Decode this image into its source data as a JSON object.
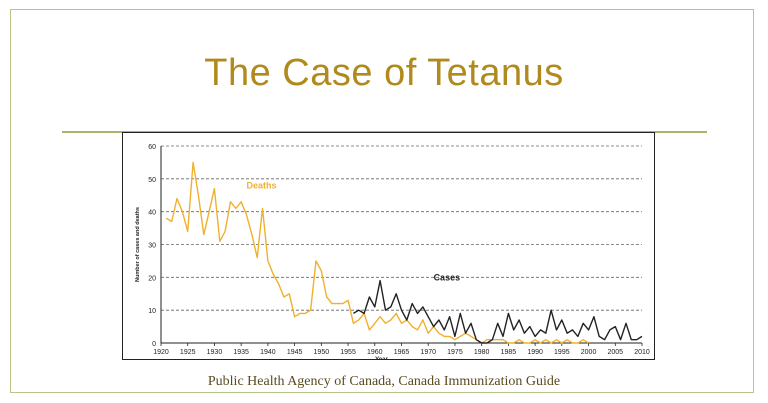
{
  "slide": {
    "title": "The Case of Tetanus",
    "source": "Public Health Agency of Canada, Canada Immunization Guide"
  },
  "colors": {
    "title": "#b08a1c",
    "rule": "#a8b66a",
    "deaths": "#f0b02e",
    "cases": "#222222",
    "grid": "#666666"
  },
  "chart_data": {
    "type": "line",
    "ylabel": "Number of cases and deaths",
    "xlabel": "Year",
    "xlim": [
      1920,
      2010
    ],
    "ylim": [
      0,
      60
    ],
    "x_ticks": [
      1920,
      1925,
      1930,
      1935,
      1940,
      1945,
      1950,
      1955,
      1960,
      1965,
      1970,
      1975,
      1980,
      1985,
      1990,
      1995,
      2000,
      2005,
      2010
    ],
    "y_ticks": [
      0,
      10,
      20,
      30,
      40,
      50,
      60
    ],
    "grid": "horizontal dashed",
    "series": [
      {
        "name": "Deaths",
        "color": "#f0b02e",
        "label_at": [
          1936,
          47
        ],
        "points": [
          [
            1921,
            38
          ],
          [
            1922,
            37
          ],
          [
            1923,
            44
          ],
          [
            1924,
            40
          ],
          [
            1925,
            34
          ],
          [
            1926,
            55
          ],
          [
            1927,
            45
          ],
          [
            1928,
            33
          ],
          [
            1929,
            40
          ],
          [
            1930,
            47
          ],
          [
            1931,
            31
          ],
          [
            1932,
            34
          ],
          [
            1933,
            43
          ],
          [
            1934,
            41
          ],
          [
            1935,
            43
          ],
          [
            1936,
            39
          ],
          [
            1937,
            33
          ],
          [
            1938,
            26
          ],
          [
            1939,
            41
          ],
          [
            1940,
            25
          ],
          [
            1941,
            21
          ],
          [
            1942,
            18
          ],
          [
            1943,
            14
          ],
          [
            1944,
            15
          ],
          [
            1945,
            8
          ],
          [
            1946,
            9
          ],
          [
            1947,
            9
          ],
          [
            1948,
            10
          ],
          [
            1949,
            25
          ],
          [
            1950,
            22
          ],
          [
            1951,
            14
          ],
          [
            1952,
            12
          ],
          [
            1953,
            12
          ],
          [
            1954,
            12
          ],
          [
            1955,
            13
          ],
          [
            1956,
            6
          ],
          [
            1957,
            7
          ],
          [
            1958,
            9
          ],
          [
            1959,
            4
          ],
          [
            1960,
            6
          ],
          [
            1961,
            8
          ],
          [
            1962,
            6
          ],
          [
            1963,
            7
          ],
          [
            1964,
            9
          ],
          [
            1965,
            6
          ],
          [
            1966,
            7
          ],
          [
            1967,
            5
          ],
          [
            1968,
            4
          ],
          [
            1969,
            7
          ],
          [
            1970,
            3
          ],
          [
            1971,
            5
          ],
          [
            1972,
            3
          ],
          [
            1973,
            2
          ],
          [
            1974,
            2
          ],
          [
            1975,
            1
          ],
          [
            1976,
            2
          ],
          [
            1977,
            3
          ],
          [
            1978,
            2
          ],
          [
            1979,
            1
          ],
          [
            1980,
            0
          ],
          [
            1981,
            1
          ],
          [
            1982,
            1
          ],
          [
            1983,
            1
          ],
          [
            1984,
            1
          ],
          [
            1985,
            0
          ],
          [
            1986,
            0
          ],
          [
            1987,
            1
          ],
          [
            1988,
            0
          ],
          [
            1989,
            0
          ],
          [
            1990,
            1
          ],
          [
            1991,
            0
          ],
          [
            1992,
            1
          ],
          [
            1993,
            0
          ],
          [
            1994,
            1
          ],
          [
            1995,
            0
          ],
          [
            1996,
            1
          ],
          [
            1997,
            0
          ],
          [
            1998,
            0
          ],
          [
            1999,
            1
          ],
          [
            2000,
            0
          ]
        ]
      },
      {
        "name": "Cases",
        "color": "#222222",
        "label_at": [
          1971,
          19
        ],
        "points": [
          [
            1956,
            9
          ],
          [
            1957,
            10
          ],
          [
            1958,
            9
          ],
          [
            1959,
            14
          ],
          [
            1960,
            11
          ],
          [
            1961,
            19
          ],
          [
            1962,
            10
          ],
          [
            1963,
            11
          ],
          [
            1964,
            15
          ],
          [
            1965,
            10
          ],
          [
            1966,
            7
          ],
          [
            1967,
            12
          ],
          [
            1968,
            9
          ],
          [
            1969,
            11
          ],
          [
            1970,
            8
          ],
          [
            1971,
            5
          ],
          [
            1972,
            7
          ],
          [
            1973,
            4
          ],
          [
            1974,
            8
          ],
          [
            1975,
            2
          ],
          [
            1976,
            9
          ],
          [
            1977,
            3
          ],
          [
            1978,
            6
          ],
          [
            1979,
            1
          ],
          [
            1980,
            0
          ],
          [
            1981,
            0
          ],
          [
            1982,
            1
          ],
          [
            1983,
            6
          ],
          [
            1984,
            2
          ],
          [
            1985,
            9
          ],
          [
            1986,
            4
          ],
          [
            1987,
            7
          ],
          [
            1988,
            3
          ],
          [
            1989,
            5
          ],
          [
            1990,
            2
          ],
          [
            1991,
            4
          ],
          [
            1992,
            3
          ],
          [
            1993,
            10
          ],
          [
            1994,
            4
          ],
          [
            1995,
            7
          ],
          [
            1996,
            3
          ],
          [
            1997,
            4
          ],
          [
            1998,
            2
          ],
          [
            1999,
            6
          ],
          [
            2000,
            4
          ],
          [
            2001,
            8
          ],
          [
            2002,
            2
          ],
          [
            2003,
            1
          ],
          [
            2004,
            4
          ],
          [
            2005,
            5
          ],
          [
            2006,
            1
          ],
          [
            2007,
            6
          ],
          [
            2008,
            1
          ],
          [
            2009,
            1
          ],
          [
            2010,
            2
          ]
        ]
      }
    ]
  }
}
